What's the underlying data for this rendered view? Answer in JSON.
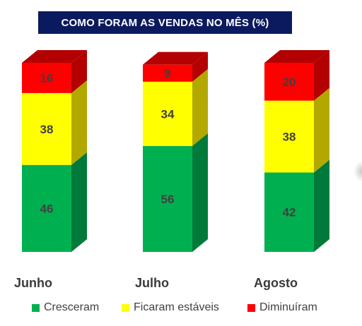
{
  "chart_data": {
    "type": "bar",
    "stacked": true,
    "title": "Como foram as vendas no mês (%)",
    "categories": [
      "Junho",
      "Julho",
      "Agosto"
    ],
    "series": [
      {
        "name": "Cresceram",
        "values": [
          46,
          56,
          42
        ],
        "color": "#00b050",
        "side_color": "#007a3a"
      },
      {
        "name": "Ficaram estáveis",
        "values": [
          38,
          34,
          38
        ],
        "color": "#ffff00",
        "side_color": "#b3a800"
      },
      {
        "name": "Diminuíram",
        "values": [
          16,
          9,
          20
        ],
        "color": "#ff0000",
        "side_color": "#b30000"
      }
    ],
    "ylim": [
      0,
      100
    ],
    "legend_position": "bottom",
    "grid": false
  },
  "title_color": "#0b1a5e"
}
